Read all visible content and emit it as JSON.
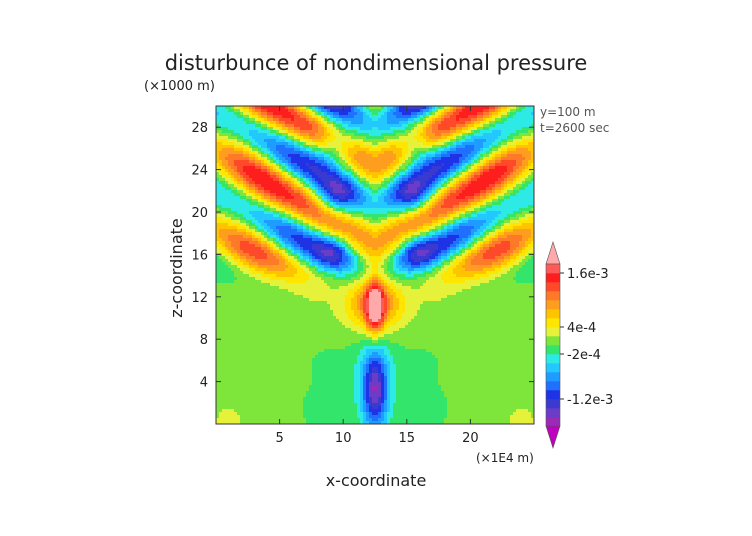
{
  "chart_data": {
    "type": "heatmap",
    "title": "disturbunce of nondimensional pressure",
    "xlabel": "x-coordinate",
    "ylabel": "z-coordinate",
    "x_unit": "(×1E4 m)",
    "z_unit": "(×1000 m)",
    "annotations": [
      "y=100 m",
      "t=2600 sec"
    ],
    "xlim": [
      0,
      25
    ],
    "ylim": [
      0,
      30
    ],
    "x_ticks": [
      5,
      10,
      15,
      20
    ],
    "y_ticks": [
      4,
      8,
      12,
      16,
      20,
      24,
      28
    ],
    "grid": false,
    "colorbar": {
      "placement": "right",
      "labels": [
        {
          "text": "1.6e-3",
          "value": 0.0016
        },
        {
          "text": "4e-4",
          "value": 0.0004
        },
        {
          "text": "-2e-4",
          "value": -0.0002
        },
        {
          "text": "-1.2e-3",
          "value": -0.0012
        }
      ],
      "levels": [
        -0.0018,
        -0.0016,
        -0.0014,
        -0.0012,
        -0.001,
        -0.0008,
        -0.0006,
        -0.0004,
        -0.0002,
        0,
        0.0002,
        0.0004,
        0.0006,
        0.0008,
        0.001,
        0.0012,
        0.0014,
        0.0016,
        0.0018
      ],
      "colors": [
        "#c000c0",
        "#9a2ab8",
        "#6a3cc8",
        "#3a3ad0",
        "#1e32e6",
        "#2070ff",
        "#1e9cff",
        "#22c8ff",
        "#2eeae6",
        "#33e66b",
        "#7ee63a",
        "#e6f23a",
        "#ffe600",
        "#ffc400",
        "#ff9e1e",
        "#ff7a28",
        "#ff4a2a",
        "#ff1e1e",
        "#ff5a5a",
        "#ffaaaa"
      ]
    }
  }
}
